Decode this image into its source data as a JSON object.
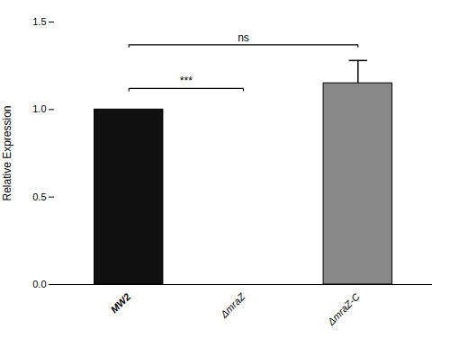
{
  "chart_data": {
    "type": "bar",
    "categories": [
      "MW2",
      "ΔmraZ",
      "ΔmraZ-C"
    ],
    "values": [
      1.0,
      0.0,
      1.15
    ],
    "errors": [
      0.0,
      0.0,
      0.13
    ],
    "colors": [
      "#111111",
      "#ffffff",
      "#888888"
    ],
    "ylabel": "Relative Expression",
    "ylim": [
      0,
      1.5
    ],
    "yticks": [
      {
        "value": 0,
        "label": "0.0"
      },
      0.5,
      {
        "value": 1,
        "label": "1.0"
      },
      1.5
    ],
    "annotations": [
      {
        "x1": "MW2",
        "x2": "ΔmraZ",
        "y": 1.12,
        "label": "***"
      },
      {
        "x1": "MW2",
        "x2": "ΔmraZ-C",
        "y": 1.37,
        "label": "ns"
      }
    ]
  }
}
